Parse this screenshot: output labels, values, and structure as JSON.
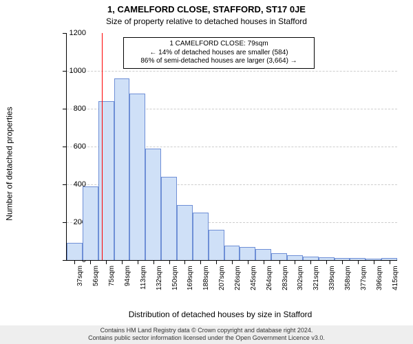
{
  "header": {
    "title": "1, CAMELFORD CLOSE, STAFFORD, ST17 0JE",
    "subtitle": "Size of property relative to detached houses in Stafford"
  },
  "axes": {
    "ylabel": "Number of detached properties",
    "xlabel": "Distribution of detached houses by size in Stafford"
  },
  "chart": {
    "type": "histogram",
    "ylim": [
      0,
      1200
    ],
    "ytick_step": 200,
    "bar_fill": "#cfe0f7",
    "bar_stroke": "#6e8fd6",
    "background_color": "#ffffff",
    "grid_color": "#cccccc",
    "marker_color": "#ff0000",
    "marker_x": 79,
    "x_start": 37,
    "x_step": 19,
    "bar_width_ratio": 1.0,
    "categories": [
      "37sqm",
      "56sqm",
      "75sqm",
      "94sqm",
      "113sqm",
      "132sqm",
      "150sqm",
      "169sqm",
      "188sqm",
      "207sqm",
      "226sqm",
      "245sqm",
      "264sqm",
      "283sqm",
      "302sqm",
      "321sqm",
      "339sqm",
      "358sqm",
      "377sqm",
      "396sqm",
      "415sqm"
    ],
    "values": [
      90,
      390,
      840,
      960,
      880,
      590,
      440,
      290,
      250,
      160,
      75,
      70,
      60,
      35,
      25,
      20,
      15,
      10,
      10,
      8,
      10
    ]
  },
  "annotation": {
    "line1": "1 CAMELFORD CLOSE: 79sqm",
    "line2": "← 14% of detached houses are smaller (584)",
    "line3": "86% of semi-detached houses are larger (3,664) →"
  },
  "footer": {
    "line1": "Contains HM Land Registry data © Crown copyright and database right 2024.",
    "line2": "Contains public sector information licensed under the Open Government Licence v3.0."
  }
}
